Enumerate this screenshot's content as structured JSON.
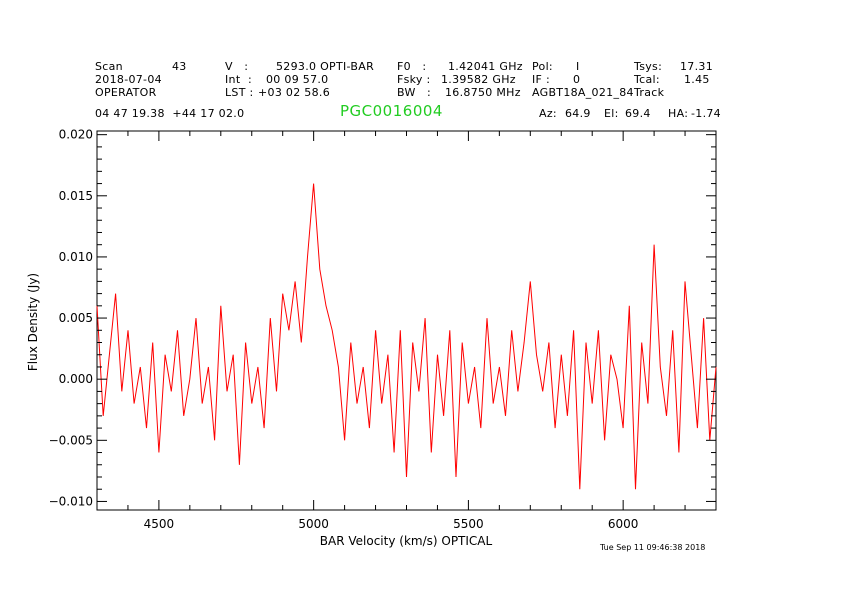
{
  "header": {
    "scan_label": "Scan",
    "scan_value": "43",
    "date": "2018-07-04",
    "operator": "OPERATOR",
    "v_label": "V   :",
    "v_value": "5293.0 OPTI-BAR",
    "int_label": "Int  :",
    "int_value": "00 09 57.0",
    "lst_label": "LST :",
    "lst_value": "+03 02 58.6",
    "f0_label": "F0   :",
    "f0_value": "1.42041 GHz",
    "fsky_label": "Fsky :",
    "fsky_value": "1.39582 GHz",
    "bw_label": "BW   :",
    "bw_value": "16.8750 MHz",
    "pol_label": "Pol:",
    "pol_value": "I",
    "if_label": "IF :",
    "if_value": "0",
    "session": "AGBT18A_021_84",
    "mode": "Track",
    "tsys_label": "Tsys:",
    "tsys_value": "17.31",
    "tcal_label": "Tcal:",
    "tcal_value": "1.45",
    "coords": "04 47 19.38  +44 17 02.0",
    "object": "PGC0016004",
    "az_label": "Az:",
    "az_value": "64.9",
    "el_label": "El:",
    "el_value": "69.4",
    "ha_label": "HA:",
    "ha_value": "-1.74"
  },
  "timestamp": "Tue Sep 11 09:46:38 2018",
  "colors": {
    "series": "#ff0000",
    "object": "#22cc22",
    "axes": "#000000"
  },
  "chart_data": {
    "type": "line",
    "title": "",
    "xlabel": "BAR Velocity (km/s) OPTICAL",
    "ylabel": "Flux Density (Jy)",
    "xlim": [
      4300,
      6300
    ],
    "ylim": [
      -0.0107,
      0.0203
    ],
    "xticks": [
      4500,
      5000,
      5500,
      6000
    ],
    "xtick_labels": [
      "4500",
      "5000",
      "5500",
      "6000"
    ],
    "yticks": [
      -0.01,
      -0.005,
      0.0,
      0.005,
      0.01,
      0.015,
      0.02
    ],
    "ytick_labels": [
      "−0.010",
      "−0.005",
      "0.000",
      "0.005",
      "0.010",
      "0.015",
      "0.020"
    ],
    "grid": false,
    "series": [
      {
        "x": [
          4300,
          4320,
          4340,
          4360,
          4380,
          4400,
          4420,
          4440,
          4460,
          4480,
          4500,
          4520,
          4540,
          4560,
          4580,
          4600,
          4620,
          4640,
          4660,
          4680,
          4700,
          4720,
          4740,
          4760,
          4780,
          4800,
          4820,
          4840,
          4860,
          4880,
          4900,
          4920,
          4940,
          4960,
          4980,
          5000,
          5020,
          5040,
          5060,
          5080,
          5100,
          5120,
          5140,
          5160,
          5180,
          5200,
          5220,
          5240,
          5260,
          5280,
          5300,
          5320,
          5340,
          5360,
          5380,
          5400,
          5420,
          5440,
          5460,
          5480,
          5500,
          5520,
          5540,
          5560,
          5580,
          5600,
          5620,
          5640,
          5660,
          5680,
          5700,
          5720,
          5740,
          5760,
          5780,
          5800,
          5820,
          5840,
          5860,
          5880,
          5900,
          5920,
          5940,
          5960,
          5980,
          6000,
          6020,
          6040,
          6060,
          6080,
          6100,
          6120,
          6140,
          6160,
          6180,
          6200,
          6220,
          6240,
          6260,
          6280,
          6300
        ],
        "y": [
          0.006,
          -0.003,
          0.002,
          0.007,
          -0.001,
          0.004,
          -0.002,
          0.001,
          -0.004,
          0.003,
          -0.006,
          0.002,
          -0.001,
          0.004,
          -0.003,
          0.0,
          0.005,
          -0.002,
          0.001,
          -0.005,
          0.006,
          -0.001,
          0.002,
          -0.007,
          0.003,
          -0.002,
          0.001,
          -0.004,
          0.005,
          -0.001,
          0.007,
          0.004,
          0.008,
          0.003,
          0.01,
          0.016,
          0.009,
          0.006,
          0.004,
          0.001,
          -0.005,
          0.003,
          -0.002,
          0.001,
          -0.004,
          0.004,
          -0.002,
          0.002,
          -0.006,
          0.004,
          -0.008,
          0.003,
          -0.001,
          0.005,
          -0.006,
          0.002,
          -0.003,
          0.004,
          -0.008,
          0.003,
          -0.002,
          0.001,
          -0.004,
          0.005,
          -0.002,
          0.001,
          -0.003,
          0.004,
          -0.001,
          0.003,
          0.008,
          0.002,
          -0.001,
          0.003,
          -0.004,
          0.002,
          -0.003,
          0.004,
          -0.009,
          0.003,
          -0.002,
          0.004,
          -0.005,
          0.002,
          0.0,
          -0.004,
          0.006,
          -0.009,
          0.003,
          -0.002,
          0.011,
          0.001,
          -0.003,
          0.004,
          -0.006,
          0.008,
          0.002,
          -0.004,
          0.005,
          -0.005,
          0.001
        ]
      }
    ]
  }
}
